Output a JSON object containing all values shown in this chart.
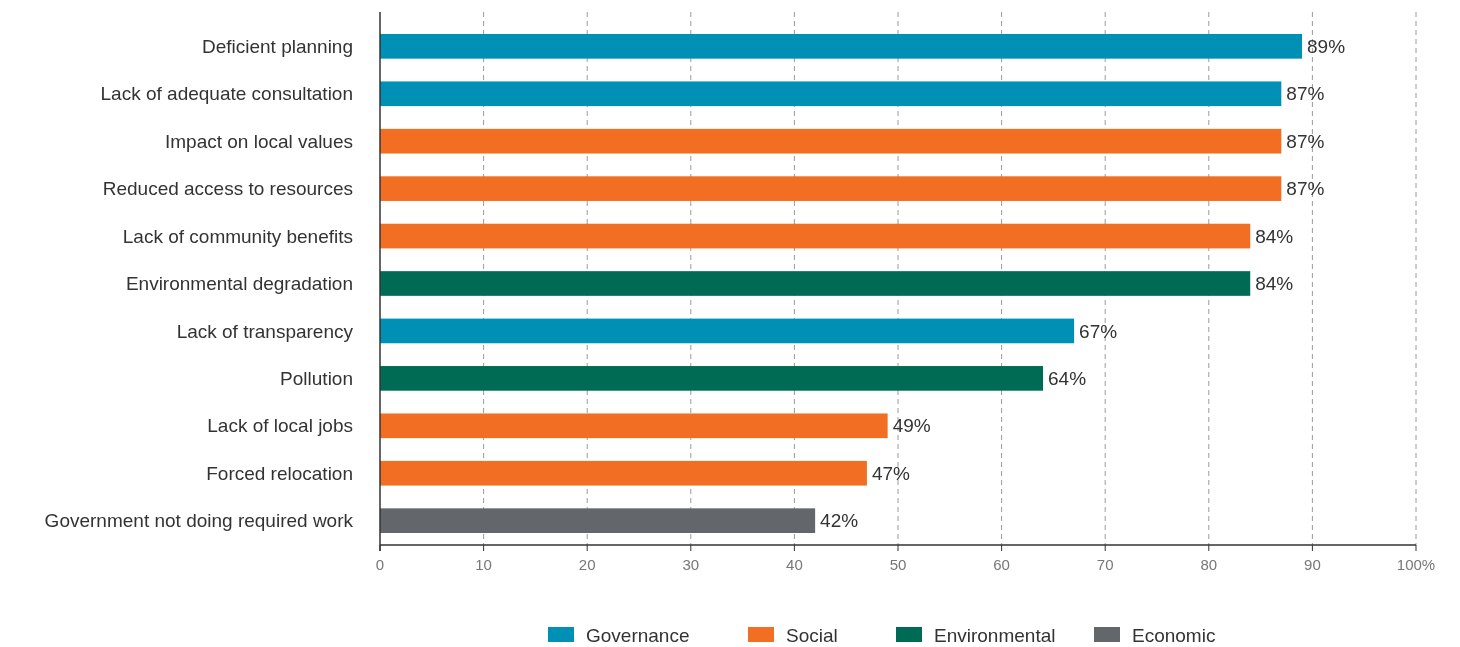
{
  "chart_data": {
    "type": "bar",
    "orientation": "horizontal",
    "categories": [
      "Deficient planning",
      "Lack of adequate consultation",
      "Impact on local values",
      "Reduced access to resources",
      "Lack of community benefits",
      "Environmental degradation",
      "Lack of transparency",
      "Pollution",
      "Lack of local jobs",
      "Forced relocation",
      "Government not doing required work"
    ],
    "series": [
      {
        "name": "Governance",
        "color": "#0090b5",
        "values": [
          89,
          87,
          null,
          null,
          null,
          null,
          67,
          null,
          null,
          null,
          null
        ],
        "value_labels": [
          "89%",
          "87%",
          null,
          null,
          null,
          null,
          "67%",
          null,
          null,
          null,
          null
        ]
      },
      {
        "name": "Social",
        "color": "#f26e22",
        "values": [
          null,
          null,
          87,
          87,
          84,
          null,
          null,
          null,
          49,
          47,
          null
        ],
        "value_labels": [
          null,
          null,
          "87%",
          "87%",
          "84%",
          null,
          null,
          null,
          "49%",
          "47%",
          null
        ]
      },
      {
        "name": "Environmental",
        "color": "#006b54",
        "values": [
          null,
          null,
          null,
          null,
          null,
          84,
          null,
          64,
          null,
          null,
          null
        ],
        "value_labels": [
          null,
          null,
          null,
          null,
          null,
          "84%",
          null,
          "64%",
          null,
          null,
          null
        ]
      },
      {
        "name": "Economic",
        "color": "#63666a",
        "values": [
          null,
          null,
          null,
          null,
          null,
          null,
          null,
          null,
          null,
          null,
          42
        ],
        "value_labels": [
          null,
          null,
          null,
          null,
          null,
          null,
          null,
          null,
          null,
          null,
          "42%"
        ]
      }
    ],
    "xlim": [
      0,
      100
    ],
    "xticks": [
      0,
      10,
      20,
      30,
      40,
      50,
      60,
      70,
      80,
      90,
      {
        "value": 100,
        "label": "100%"
      }
    ],
    "grid": "x",
    "legend": "bottom"
  }
}
